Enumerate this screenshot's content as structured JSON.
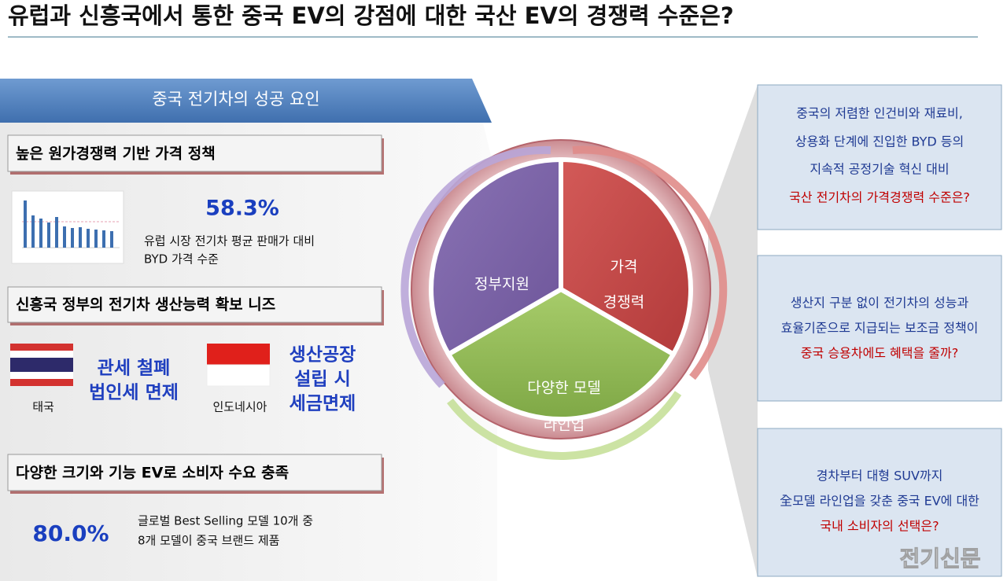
{
  "title": "유럽과 신흥국에서 통한 중국 EV의 강점에 대한 국산 EV의 경쟁력 수준은?",
  "left_panel": {
    "header": "중국 전기차의 성공 요인",
    "sections": [
      {
        "heading": "높은 원가경쟁력 기반 가격 정책",
        "stat": "58.3%",
        "description": [
          "유럽 시장 전기차 평균 판매가 대비",
          "BYD 가격 수준"
        ]
      },
      {
        "heading": "신흥국 정부의 전기차 생산능력 확보 니즈",
        "countries": [
          {
            "name": "태국",
            "benefits": [
              "관세 철폐",
              "법인세 면제"
            ]
          },
          {
            "name": "인도네시아",
            "benefits": [
              "생산공장",
              "설립 시",
              "세금면제"
            ]
          }
        ]
      },
      {
        "heading": "다양한 크기와 기능 EV로 소비자 수요 충족",
        "stat": "80.0%",
        "description": [
          "글로벌 Best Selling 모델 10개 중",
          "8개 모델이 중국 브랜드 제품"
        ]
      }
    ]
  },
  "cycle": {
    "segments": [
      {
        "label": [
          "정부지원"
        ]
      },
      {
        "label": [
          "가격",
          "경쟁력"
        ]
      },
      {
        "label": [
          "다양한 모델",
          "라인업"
        ]
      }
    ]
  },
  "questions": [
    {
      "lines": [
        "중국의 저렴한 인건비와 재료비,",
        "상용화 단계에 진입한 BYD 등의",
        "지속적 공정기술 혁신 대비"
      ],
      "highlight": "국산 전기차의 가격경쟁력 수준은?"
    },
    {
      "lines": [
        "생산지 구분 없이 전기차의 성능과",
        "효율기준으로 지급되는 보조금 정책이"
      ],
      "highlight": "중국 승용차에도 혜택을 줄까?"
    },
    {
      "lines": [
        "경차부터 대형 SUV까지",
        "全모델 라인업을 갖춘 중국 EV에 대한"
      ],
      "highlight": "국내 소비자의 선택은?"
    }
  ],
  "watermark": "전기신문"
}
